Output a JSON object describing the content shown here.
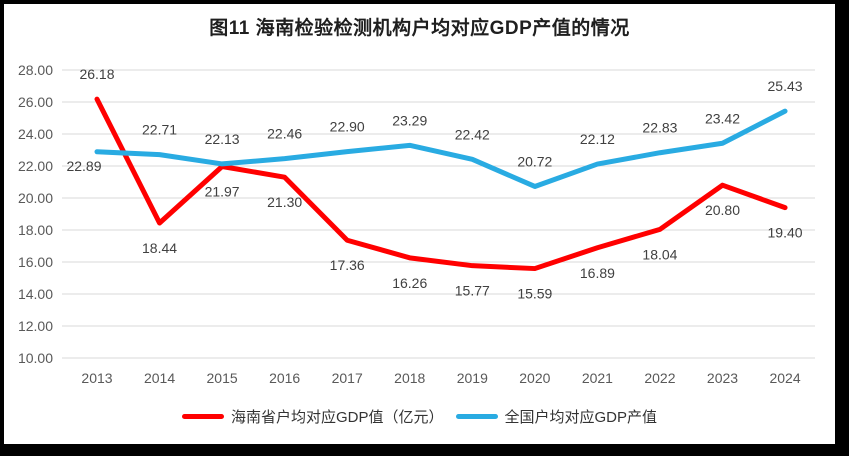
{
  "frame": {
    "border_color": "#000000",
    "canvas_background": "#ffffff"
  },
  "chart_data": {
    "type": "line",
    "title": "图11 海南检验检测机构户均对应GDP产值的情况",
    "categories": [
      "2013",
      "2014",
      "2015",
      "2016",
      "2017",
      "2018",
      "2019",
      "2020",
      "2021",
      "2022",
      "2023",
      "2024"
    ],
    "series": [
      {
        "name": "海南省户均对应GDP值（亿元）",
        "color": "#FF0000",
        "values": [
          26.18,
          18.44,
          21.97,
          21.3,
          17.36,
          16.26,
          15.77,
          15.59,
          16.89,
          18.04,
          20.8,
          19.4
        ],
        "label_sides": [
          "above",
          "below",
          "below",
          "below",
          "below",
          "below",
          "below",
          "below",
          "below",
          "below",
          "below",
          "below"
        ]
      },
      {
        "name": "全国户均对应GDP产值",
        "color": "#29ABE2",
        "values": [
          22.89,
          22.71,
          22.13,
          22.46,
          22.9,
          23.29,
          22.42,
          20.72,
          22.12,
          22.83,
          23.42,
          25.43
        ],
        "label_sides": [
          "below",
          "above",
          "above",
          "above",
          "above",
          "above",
          "above",
          "above",
          "above",
          "above",
          "above",
          "above"
        ],
        "label_offsets": {
          "0": {
            "dx": -13,
            "dy": -11
          }
        }
      }
    ],
    "xlabel": "",
    "ylabel": "",
    "y_axis": {
      "min": 10,
      "max": 28,
      "step": 2,
      "tick_format": "0.00"
    },
    "ylim": [
      10,
      28
    ],
    "grid": true,
    "gridline_color": "#D9D9D9",
    "tick_label_color": "#595959",
    "data_label_color": "#404040",
    "legend_position": "bottom",
    "line_width": 5
  }
}
